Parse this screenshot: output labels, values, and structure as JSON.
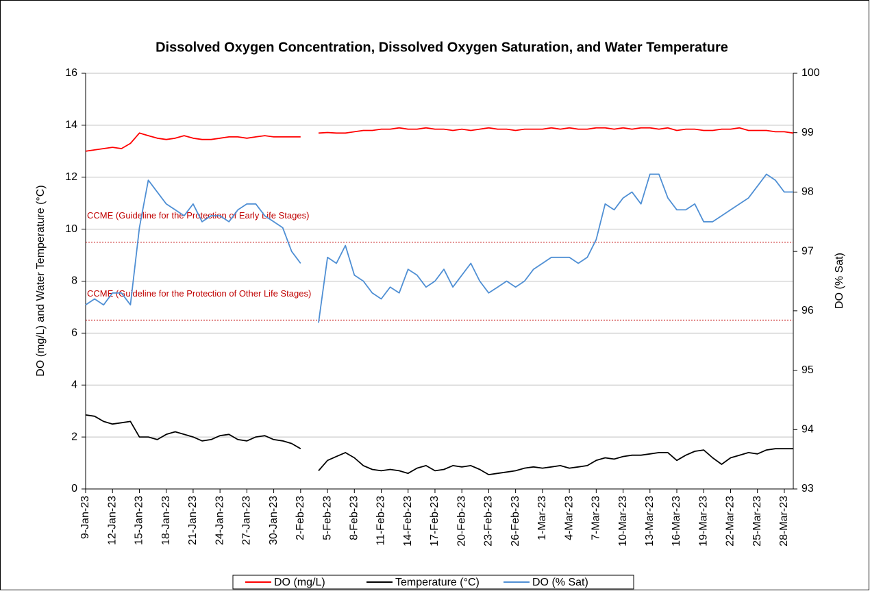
{
  "chart_data": {
    "type": "line",
    "title": "Dissolved Oxygen Concentration, Dissolved Oxygen Saturation, and Water Temperature",
    "y_label": "DO (mg/L) and Water Temperature (°C)",
    "y2_label": "DO (% Sat)",
    "categories": [
      "9-Jan-23",
      null,
      null,
      "12-Jan-23",
      null,
      null,
      "15-Jan-23",
      null,
      null,
      "18-Jan-23",
      null,
      null,
      "21-Jan-23",
      null,
      null,
      "24-Jan-23",
      null,
      null,
      "27-Jan-23",
      null,
      null,
      "30-Jan-23",
      null,
      null,
      "2-Feb-23",
      null,
      null,
      "5-Feb-23",
      null,
      null,
      "8-Feb-23",
      null,
      null,
      "11-Feb-23",
      null,
      null,
      "14-Feb-23",
      null,
      null,
      "17-Feb-23",
      null,
      null,
      "20-Feb-23",
      null,
      null,
      "23-Feb-23",
      null,
      null,
      "26-Feb-23",
      null,
      null,
      "1-Mar-23",
      null,
      null,
      "4-Mar-23",
      null,
      null,
      "7-Mar-23",
      null,
      null,
      "10-Mar-23",
      null,
      null,
      "13-Mar-23",
      null,
      null,
      "16-Mar-23",
      null,
      null,
      "19-Mar-23",
      null,
      null,
      "22-Mar-23",
      null,
      null,
      "25-Mar-23",
      null,
      null,
      "28-Mar-23",
      null
    ],
    "series": [
      {
        "name": "DO (mg/L)",
        "color": "#ff0000",
        "values": [
          13.0,
          13.05,
          13.1,
          13.15,
          13.1,
          13.3,
          13.7,
          13.6,
          13.5,
          13.45,
          13.5,
          13.6,
          13.5,
          13.45,
          13.45,
          13.5,
          13.55,
          13.55,
          13.5,
          13.55,
          13.6,
          13.55,
          13.55,
          13.55,
          13.55,
          null,
          13.7,
          13.72,
          13.7,
          13.7,
          13.75,
          13.8,
          13.8,
          13.85,
          13.85,
          13.9,
          13.85,
          13.85,
          13.9,
          13.85,
          13.85,
          13.8,
          13.85,
          13.8,
          13.85,
          13.9,
          13.85,
          13.85,
          13.8,
          13.85,
          13.85,
          13.85,
          13.9,
          13.85,
          13.9,
          13.85,
          13.85,
          13.9,
          13.9,
          13.85,
          13.9,
          13.85,
          13.9,
          13.9,
          13.85,
          13.9,
          13.8,
          13.85,
          13.85,
          13.8,
          13.8,
          13.85,
          13.85,
          13.9,
          13.8,
          13.8,
          13.8,
          13.75,
          13.75,
          13.7
        ]
      },
      {
        "name": "Temperature (°C)",
        "color": "#000000",
        "values": [
          2.85,
          2.8,
          2.6,
          2.5,
          2.55,
          2.6,
          2.0,
          2.0,
          1.9,
          2.1,
          2.2,
          2.1,
          2.0,
          1.85,
          1.9,
          2.05,
          2.1,
          1.9,
          1.85,
          2.0,
          2.05,
          1.9,
          1.85,
          1.75,
          1.55,
          null,
          0.7,
          1.1,
          1.25,
          1.4,
          1.2,
          0.9,
          0.75,
          0.7,
          0.75,
          0.7,
          0.6,
          0.8,
          0.9,
          0.7,
          0.75,
          0.9,
          0.85,
          0.9,
          0.75,
          0.55,
          0.6,
          0.65,
          0.7,
          0.8,
          0.85,
          0.8,
          0.85,
          0.9,
          0.8,
          0.85,
          0.9,
          1.1,
          1.2,
          1.15,
          1.25,
          1.3,
          1.3,
          1.35,
          1.4,
          1.4,
          1.1,
          1.3,
          1.45,
          1.5,
          1.2,
          0.95,
          1.2,
          1.3,
          1.4,
          1.35,
          1.5,
          1.55,
          1.55,
          1.55
        ]
      },
      {
        "name": "DO (% Sat)",
        "color": "#4f8fd4",
        "axis": "y2",
        "values": [
          96.1,
          96.2,
          96.1,
          96.3,
          96.3,
          96.1,
          97.4,
          98.2,
          98.0,
          97.8,
          97.7,
          97.6,
          97.8,
          97.5,
          97.6,
          97.6,
          97.5,
          97.7,
          97.8,
          97.8,
          97.6,
          97.5,
          97.4,
          97.0,
          96.8,
          null,
          95.8,
          96.9,
          96.8,
          97.1,
          96.6,
          96.5,
          96.3,
          96.2,
          96.4,
          96.3,
          96.7,
          96.6,
          96.4,
          96.5,
          96.7,
          96.4,
          96.6,
          96.8,
          96.5,
          96.3,
          96.4,
          96.5,
          96.4,
          96.5,
          96.7,
          96.8,
          96.9,
          96.9,
          96.9,
          96.8,
          96.9,
          97.2,
          97.8,
          97.7,
          97.9,
          98.0,
          97.8,
          98.3,
          98.3,
          97.9,
          97.7,
          97.7,
          97.8,
          97.5,
          97.5,
          97.6,
          97.7,
          97.8,
          97.9,
          98.1,
          98.3,
          98.2,
          98.0,
          98.0
        ]
      }
    ],
    "reference_lines": [
      {
        "value": 9.5,
        "label": "CCME (Guideline for the Protection of Early Life Stages)",
        "color": "#c00000"
      },
      {
        "value": 6.5,
        "label": "CCME (Guideline for the Protection of Other Life Stages)",
        "color": "#c00000"
      }
    ],
    "ylim": [
      0,
      16
    ],
    "yticks": [
      0,
      2,
      4,
      6,
      8,
      10,
      12,
      14,
      16
    ],
    "y2lim": [
      93,
      100
    ],
    "y2ticks": [
      93,
      94,
      95,
      96,
      97,
      98,
      99,
      100
    ],
    "grid": true,
    "legend": "bottom"
  }
}
